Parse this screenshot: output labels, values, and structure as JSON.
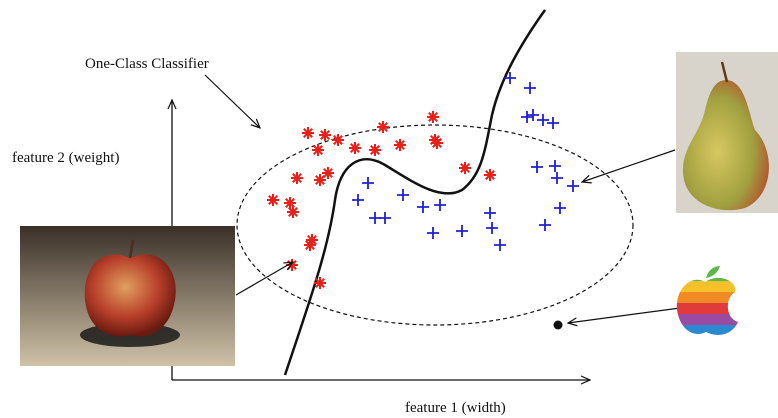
{
  "diagram": {
    "classifier_label": "One-Class Classifier",
    "y_axis_label": "feature 2 (weight)",
    "x_axis_label": "feature 1 (width)"
  }
}
